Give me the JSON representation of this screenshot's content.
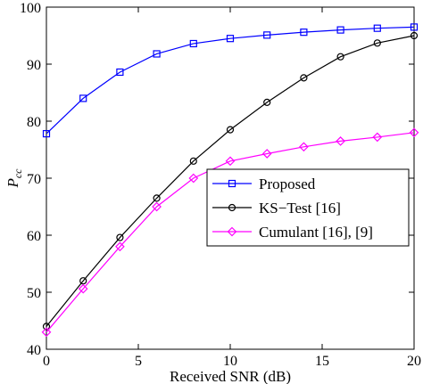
{
  "chart_data": {
    "type": "line",
    "title": "",
    "xlabel": "Received SNR (dB)",
    "ylabel_main": "P",
    "ylabel_sub": "cc",
    "xlim": [
      0,
      20
    ],
    "ylim": [
      40,
      100
    ],
    "xticks": [
      0,
      5,
      10,
      15,
      20
    ],
    "yticks": [
      40,
      50,
      60,
      70,
      80,
      90,
      100
    ],
    "grid": false,
    "legend_placement": "center-right",
    "x": [
      0,
      2,
      4,
      6,
      8,
      10,
      12,
      14,
      16,
      18,
      20
    ],
    "series": [
      {
        "name": "Proposed",
        "color": "#0000ff",
        "marker": "square",
        "values": [
          77.8,
          84.0,
          88.6,
          91.8,
          93.6,
          94.5,
          95.1,
          95.6,
          96.0,
          96.3,
          96.5
        ]
      },
      {
        "name": "KS−Test [16]",
        "color": "#000000",
        "marker": "circle",
        "values": [
          44.0,
          52.0,
          59.6,
          66.5,
          73.0,
          78.5,
          83.3,
          87.6,
          91.3,
          93.7,
          95.0
        ]
      },
      {
        "name": "Cumulant [16], [9]",
        "color": "#ff00ff",
        "marker": "diamond",
        "values": [
          43.0,
          50.6,
          58.0,
          65.0,
          70.0,
          73.0,
          74.3,
          75.5,
          76.5,
          77.2,
          78.0
        ]
      }
    ]
  }
}
